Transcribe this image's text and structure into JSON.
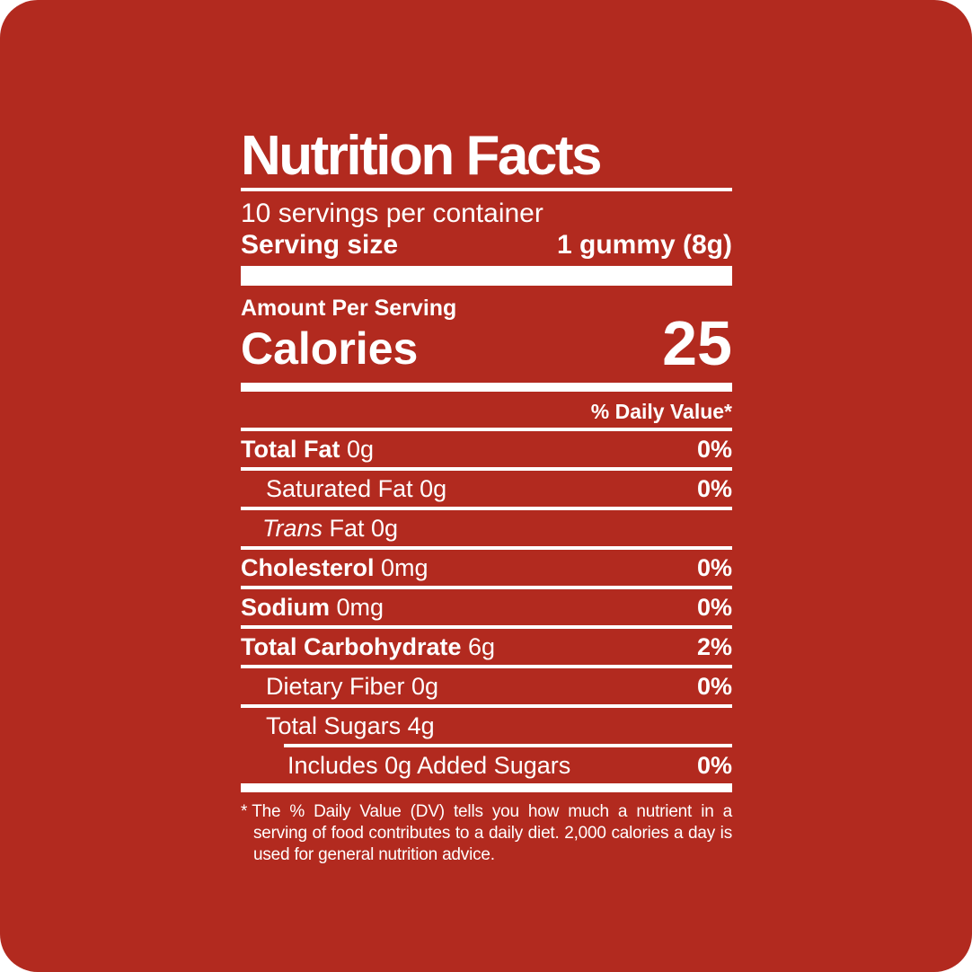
{
  "colors": {
    "background": "#b22a1f",
    "text": "#ffffff"
  },
  "label": {
    "title": "Nutrition Facts",
    "servings_per_container": "10 servings per container",
    "serving_size": {
      "label": "Serving size",
      "value": "1 gummy (8g)"
    },
    "amount_per_serving": "Amount Per Serving",
    "calories": {
      "label": "Calories",
      "value": "25"
    },
    "daily_value_header": "% Daily Value*",
    "rows": [
      {
        "bold": "Total Fat",
        "rest": " 0g",
        "dv": "0%"
      },
      {
        "bold": "",
        "rest": "Saturated Fat 0g",
        "dv": "0%"
      },
      {
        "italic": "Trans",
        "rest": " Fat 0g",
        "dv": ""
      },
      {
        "bold": "Cholesterol",
        "rest": " 0mg",
        "dv": "0%"
      },
      {
        "bold": "Sodium",
        "rest": " 0mg",
        "dv": "0%"
      },
      {
        "bold": "Total Carbohydrate",
        "rest": " 6g",
        "dv": "2%"
      },
      {
        "bold": "",
        "rest": "Dietary Fiber 0g",
        "dv": "0%"
      },
      {
        "bold": "",
        "rest": "Total Sugars 4g",
        "dv": ""
      },
      {
        "bold": "",
        "rest": "Includes 0g Added Sugars",
        "dv": "0%"
      }
    ],
    "footnote": {
      "marker": "*",
      "text": "The % Daily Value (DV) tells you how much a nutrient in a serving of food contributes to a daily diet. 2,000 calories a day is used for general nutrition advice."
    }
  }
}
